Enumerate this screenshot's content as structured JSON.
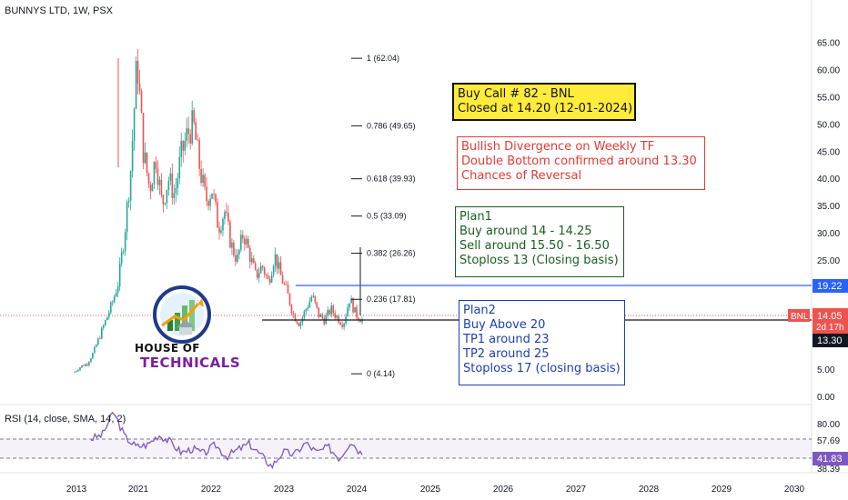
{
  "header": {
    "title": "BUNNYS LTD, 1W, PSX"
  },
  "rsi": {
    "title": "RSI (14, close, SMA, 14, 2)",
    "current_label": "41.83",
    "upper_label": "57.69",
    "lower_label": "38.39",
    "top_label": "80.00"
  },
  "price_axis": {
    "ticks": [
      "65.00",
      "60.00",
      "55.00",
      "50.00",
      "45.00",
      "40.00",
      "35.00",
      "30.00",
      "25.00",
      "20.00",
      "15.00",
      "10.00",
      "5.00",
      "0.00"
    ],
    "marker_top": "19.22",
    "marker_symbol": "BNL",
    "marker_price": "14.05",
    "marker_time": "2d 17h",
    "marker_bottom": "13.30"
  },
  "time_axis": {
    "ticks": [
      "2013",
      "2021",
      "2022",
      "2023",
      "2024",
      "2025",
      "2026",
      "2027",
      "2028",
      "2029",
      "2030"
    ]
  },
  "fib_levels": [
    {
      "label": "1 (62.04)",
      "value": 62.04
    },
    {
      "label": "0.786 (49.65)",
      "value": 49.65
    },
    {
      "label": "0.618 (39.93)",
      "value": 39.93
    },
    {
      "label": "0.5 (33.09)",
      "value": 33.09
    },
    {
      "label": "0.382 (26.26)",
      "value": 26.26
    },
    {
      "label": "0.236 (17.81)",
      "value": 17.81
    },
    {
      "label": "0 (4.14)",
      "value": 4.14
    }
  ],
  "notes": {
    "buy_call": [
      "Buy Call # 82 - BNL",
      "Closed at 14.20 (12-01-2024)"
    ],
    "bullish": [
      "Bullish Divergence on Weekly TF",
      "Double Bottom confirmed around 13.30",
      "Chances of Reversal"
    ],
    "plan1": [
      "Plan1",
      "Buy around 14 - 14.25",
      "Sell around 15.50 - 16.50",
      "Stoploss 13 (Closing basis)"
    ],
    "plan2": [
      "Plan2",
      "Buy Above 20",
      "TP1 around 23",
      "TP2 around 25",
      "Stoploss 17 (closing basis)"
    ]
  },
  "logo": {
    "line1": "HOUSE OF",
    "line2": "TECHNICALS"
  },
  "colors": {
    "up": "#26a69a",
    "down": "#ef5350",
    "rsi": "#7e57c2",
    "resistance": "#2962ff",
    "support": "#131722"
  },
  "chart_data": {
    "type": "candlestick",
    "title": "BUNNYS LTD, 1W, PSX",
    "ylim": [
      0,
      65
    ],
    "grid": false,
    "price_path": [
      {
        "x": "2013",
        "price": 4.5
      },
      {
        "x": "2013",
        "price": 5.5
      },
      {
        "x": "2013",
        "price": 6.0
      },
      {
        "x": "2013",
        "price": 8.0
      },
      {
        "x": "2013",
        "price": 11.0
      },
      {
        "x": "2013",
        "price": 14.0
      },
      {
        "x": "2013",
        "price": 17.0
      },
      {
        "x": "2021",
        "price": 21.0
      },
      {
        "x": "2021",
        "price": 30.0
      },
      {
        "x": "2021",
        "price": 42.0
      },
      {
        "x": "2021",
        "price": 62.04
      },
      {
        "x": "2021",
        "price": 45.0
      },
      {
        "x": "2021",
        "price": 38.0
      },
      {
        "x": "2021",
        "price": 44.0
      },
      {
        "x": "2021",
        "price": 35.0
      },
      {
        "x": "2021",
        "price": 40.0
      },
      {
        "x": "2021",
        "price": 37.0
      },
      {
        "x": "2021",
        "price": 44.0
      },
      {
        "x": "2021",
        "price": 48.0
      },
      {
        "x": "2021",
        "price": 50.0
      },
      {
        "x": "2021",
        "price": 42.0
      },
      {
        "x": "2022",
        "price": 36.0
      },
      {
        "x": "2022",
        "price": 38.0
      },
      {
        "x": "2022",
        "price": 31.0
      },
      {
        "x": "2022",
        "price": 34.0
      },
      {
        "x": "2022",
        "price": 28.0
      },
      {
        "x": "2022",
        "price": 25.0
      },
      {
        "x": "2022",
        "price": 30.0
      },
      {
        "x": "2022",
        "price": 26.0
      },
      {
        "x": "2022",
        "price": 22.0
      },
      {
        "x": "2022",
        "price": 24.0
      },
      {
        "x": "2022",
        "price": 21.0
      },
      {
        "x": "2022",
        "price": 26.0
      },
      {
        "x": "2022",
        "price": 22.0
      },
      {
        "x": "2023",
        "price": 19.0
      },
      {
        "x": "2023",
        "price": 15.0
      },
      {
        "x": "2023",
        "price": 13.3
      },
      {
        "x": "2023",
        "price": 16.0
      },
      {
        "x": "2023",
        "price": 18.5
      },
      {
        "x": "2023",
        "price": 15.0
      },
      {
        "x": "2023",
        "price": 14.0
      },
      {
        "x": "2023",
        "price": 16.0
      },
      {
        "x": "2023",
        "price": 14.5
      },
      {
        "x": "2023",
        "price": 13.3
      },
      {
        "x": "2024",
        "price": 18.0
      },
      {
        "x": "2024",
        "price": 15.0
      },
      {
        "x": "2024",
        "price": 14.05
      }
    ],
    "horizontal_lines": [
      {
        "name": "resistance",
        "value": 19.22
      },
      {
        "name": "support",
        "value": 13.3
      }
    ],
    "rsi_series": [
      {
        "x": "2013",
        "value": 58
      },
      {
        "x": "2021",
        "value": 62
      },
      {
        "x": "2021",
        "value": 85
      },
      {
        "x": "2021",
        "value": 60
      },
      {
        "x": "2021",
        "value": 50
      },
      {
        "x": "2021",
        "value": 52
      },
      {
        "x": "2021",
        "value": 62
      },
      {
        "x": "2021",
        "value": 55
      },
      {
        "x": "2021",
        "value": 44
      },
      {
        "x": "2022",
        "value": 48
      },
      {
        "x": "2022",
        "value": 43
      },
      {
        "x": "2022",
        "value": 52
      },
      {
        "x": "2022",
        "value": 40
      },
      {
        "x": "2022",
        "value": 47
      },
      {
        "x": "2022",
        "value": 53
      },
      {
        "x": "2022",
        "value": 42
      },
      {
        "x": "2023",
        "value": 30
      },
      {
        "x": "2023",
        "value": 45
      },
      {
        "x": "2023",
        "value": 42
      },
      {
        "x": "2023",
        "value": 54
      },
      {
        "x": "2023",
        "value": 44
      },
      {
        "x": "2023",
        "value": 50
      },
      {
        "x": "2023",
        "value": 38
      },
      {
        "x": "2024",
        "value": 56
      },
      {
        "x": "2024",
        "value": 41.83
      }
    ],
    "rsi_band": [
      38.39,
      57.69
    ]
  }
}
